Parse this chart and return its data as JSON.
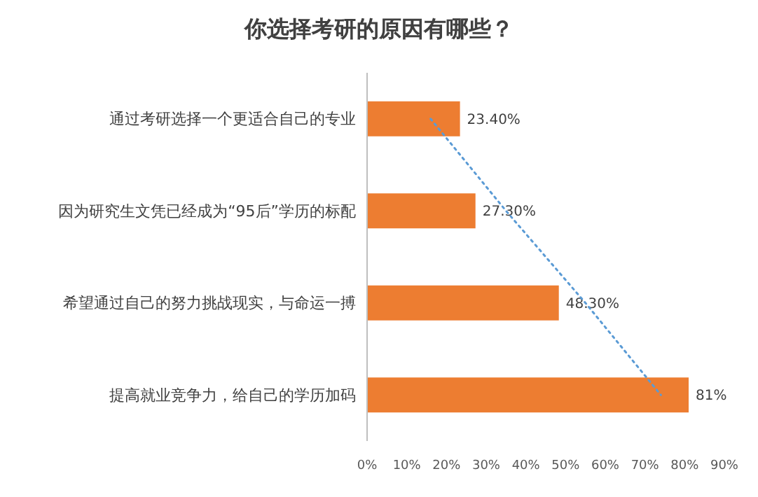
{
  "chart_data": {
    "type": "bar",
    "orientation": "horizontal",
    "title": "你选择考研的原因有哪些？",
    "categories": [
      "通过考研选择一个更适合自己的专业",
      "因为研究生文凭已经成为“95后”学历的标配",
      "希望通过自己的努力挑战现实，与命运一搏",
      "提高就业竞争力，给自己的学历加码"
    ],
    "series": [
      {
        "color": "#ed7d31",
        "values": [
          23.4,
          27.3,
          48.3,
          81
        ],
        "value_labels": [
          "23.40%",
          "27.30%",
          "48.30%",
          "81%"
        ]
      },
      {
        "type": "line",
        "color": "#5b9bd5",
        "line_style": "dotted",
        "values": [
          16,
          35,
          55,
          74
        ]
      }
    ],
    "xlim": [
      0,
      90
    ],
    "xticks": [
      {
        "value": 0,
        "label": "0%"
      },
      {
        "value": 10,
        "label": "10%"
      },
      {
        "value": 20,
        "label": "20%"
      },
      {
        "value": 30,
        "label": "30%"
      },
      {
        "value": 40,
        "label": "40%"
      },
      {
        "value": 50,
        "label": "50%"
      },
      {
        "value": 60,
        "label": "60%"
      },
      {
        "value": 70,
        "label": "70%"
      },
      {
        "value": 80,
        "label": "80%"
      },
      {
        "value": 90,
        "label": "90%"
      }
    ],
    "grid": false
  }
}
